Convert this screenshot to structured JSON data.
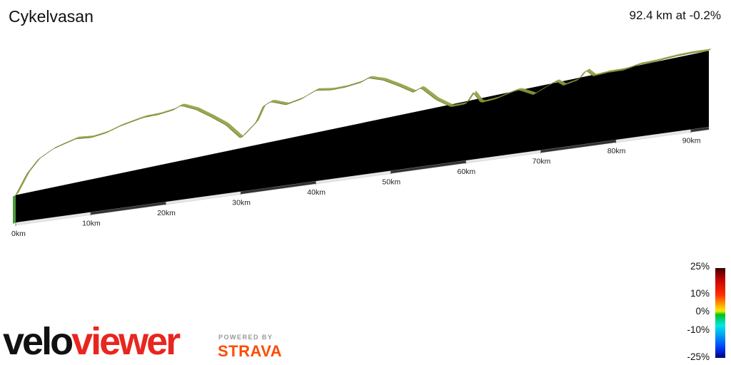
{
  "header": {
    "title": "Cykelvasan",
    "summary": "92.4 km at -0.2%"
  },
  "chart_data": {
    "type": "area",
    "title": "Cykelvasan",
    "subtitle": "92.4 km at -0.2%",
    "x_unit": "km",
    "distance_km": 92.4,
    "avg_grade_pct": -0.2,
    "x_ticks": [
      {
        "km": 0,
        "label": "0km"
      },
      {
        "km": 10,
        "label": "10km"
      },
      {
        "km": 20,
        "label": "20km"
      },
      {
        "km": 30,
        "label": "30km"
      },
      {
        "km": 40,
        "label": "40km"
      },
      {
        "km": 50,
        "label": "50km"
      },
      {
        "km": 60,
        "label": "60km"
      },
      {
        "km": 70,
        "label": "70km"
      },
      {
        "km": 80,
        "label": "80km"
      },
      {
        "km": 90,
        "label": "90km"
      }
    ],
    "elevation_relative": [
      [
        0,
        0.22
      ],
      [
        1.5,
        0.45
      ],
      [
        3,
        0.6
      ],
      [
        5,
        0.7
      ],
      [
        8,
        0.78
      ],
      [
        10,
        0.77
      ],
      [
        12,
        0.8
      ],
      [
        14,
        0.86
      ],
      [
        17,
        0.92
      ],
      [
        19,
        0.93
      ],
      [
        21,
        0.96
      ],
      [
        22,
        1.0
      ],
      [
        24,
        0.93
      ],
      [
        26,
        0.82
      ],
      [
        28,
        0.7
      ],
      [
        30,
        0.52
      ],
      [
        31,
        0.6
      ],
      [
        32,
        0.68
      ],
      [
        33,
        0.86
      ],
      [
        34,
        0.9
      ],
      [
        36,
        0.84
      ],
      [
        38,
        0.88
      ],
      [
        40,
        0.96
      ],
      [
        42,
        0.94
      ],
      [
        44,
        0.95
      ],
      [
        46,
        0.98
      ],
      [
        47,
        1.02
      ],
      [
        49,
        0.97
      ],
      [
        51,
        0.88
      ],
      [
        53,
        0.78
      ],
      [
        54,
        0.82
      ],
      [
        56,
        0.66
      ],
      [
        58,
        0.55
      ],
      [
        60,
        0.56
      ],
      [
        61,
        0.68
      ],
      [
        62,
        0.55
      ],
      [
        64,
        0.57
      ],
      [
        66,
        0.62
      ],
      [
        67,
        0.64
      ],
      [
        69,
        0.56
      ],
      [
        70,
        0.6
      ],
      [
        72,
        0.68
      ],
      [
        73,
        0.62
      ],
      [
        75,
        0.66
      ],
      [
        76,
        0.76
      ],
      [
        77,
        0.68
      ],
      [
        79,
        0.7
      ],
      [
        81,
        0.7
      ],
      [
        83,
        0.74
      ],
      [
        85,
        0.75
      ],
      [
        88,
        0.78
      ],
      [
        90,
        0.79
      ],
      [
        92.4,
        0.79
      ]
    ],
    "grade_colors": [
      [
        "#22b022",
        "#d8e030",
        "#34c834",
        "#ecec4c",
        "#1fc01f",
        "#a8e04a",
        "#2cbf2c",
        "#f0e040",
        "#28c628",
        "#bfe640",
        "#1cb81c",
        "#e4e436",
        "#20c020",
        "#d0e640",
        "#2ac42a",
        "#9ad640",
        "#24bd24",
        "#60d8a0",
        "#22c022",
        "#70d0e8",
        "#28c428",
        "#4ad8c8",
        "#1cbc1c",
        "#b0e04a",
        "#26c226",
        "#48d0e0",
        "#20c020",
        "#7adfd0",
        "#24c024",
        "#3ed8e8",
        "#22c222",
        "#5cdcd0",
        "#60e0e0",
        "#2ac82a",
        "#48d8e8",
        "#56d6d6",
        "#40d0e8",
        "#22c222",
        "#66dcdc",
        "#3ad0e8",
        "#e0e040",
        "#f0ec3c",
        "#26c426",
        "#d8e430",
        "#1cbc1c",
        "#bfe640",
        "#22c022",
        "#28c428",
        "#e6e63e",
        "#20be20",
        "#2ac42a",
        "#d0e23c",
        "#22c022",
        "#ace044",
        "#28c228",
        "#24c024",
        "#22c022",
        "#2ac82a",
        "#a8e048",
        "#24c024",
        "#34cc88",
        "#48d8e0",
        "#2ac428",
        "#5ad8e0",
        "#3ed0e8",
        "#2cc82c",
        "#64dcd8",
        "#3ad4e8",
        "#22c022",
        "#4edae0",
        "#30d0d0",
        "#2ac42a",
        "#48d0e8",
        "#f0e640",
        "#2ac42a",
        "#48d4e8",
        "#26c226",
        "#50d8e0",
        "#22c022",
        "#3cd0e8",
        "#28c628",
        "#b8e24a",
        "#24c024",
        "#3ed4e4",
        "#26c226",
        "#a8dc48",
        "#22c022",
        "#44d4e4",
        "#22c022",
        "#2ac42a"
      ]
    ],
    "legend": {
      "labels": [
        "25%",
        "10%",
        "0%",
        "-10%",
        "-25%"
      ],
      "values_pct": [
        25,
        10,
        0,
        -10,
        -25
      ]
    }
  },
  "branding": {
    "logo_velo": "velo",
    "logo_viewer": "viewer",
    "powered_by": "POWERED BY",
    "strava": "STRAVA"
  }
}
